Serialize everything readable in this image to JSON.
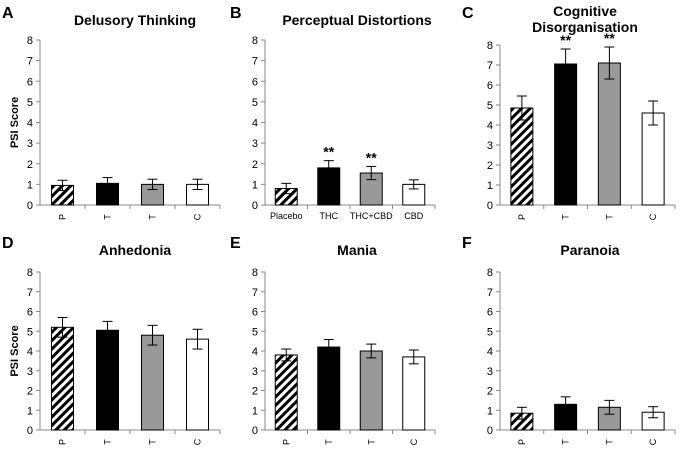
{
  "chart_data": [
    {
      "panel": "A",
      "type": "bar",
      "title_lines": [
        "Delusory Thinking"
      ],
      "ylabel": "PSI Score",
      "ylim": [
        0,
        8
      ],
      "yticks": [
        0,
        1,
        2,
        3,
        4,
        5,
        6,
        7,
        8
      ],
      "categories": [
        "P",
        "T",
        "T",
        "C"
      ],
      "values": [
        0.95,
        1.05,
        1.0,
        1.0
      ],
      "errors": [
        0.25,
        0.28,
        0.25,
        0.25
      ],
      "significance": [
        "",
        "",
        "",
        ""
      ]
    },
    {
      "panel": "B",
      "type": "bar",
      "title_lines": [
        "Perceptual Distortions"
      ],
      "ylabel": "",
      "ylim": [
        0,
        8
      ],
      "yticks": [
        0,
        1,
        2,
        3,
        4,
        5,
        6,
        7,
        8
      ],
      "categories": [
        "Placebo",
        "THC",
        "THC+CBD",
        "CBD"
      ],
      "values": [
        0.8,
        1.8,
        1.55,
        1.0
      ],
      "errors": [
        0.25,
        0.35,
        0.32,
        0.22
      ],
      "significance": [
        "",
        "**",
        "**",
        ""
      ]
    },
    {
      "panel": "C",
      "type": "bar",
      "title_lines": [
        "Cognitive",
        "Disorganisation"
      ],
      "ylabel": "",
      "ylim": [
        0,
        8
      ],
      "yticks": [
        0,
        1,
        2,
        3,
        4,
        5,
        6,
        7,
        8
      ],
      "categories": [
        "P",
        "T",
        "T",
        "C"
      ],
      "values": [
        4.85,
        7.05,
        7.1,
        4.6
      ],
      "errors": [
        0.6,
        0.75,
        0.8,
        0.6
      ],
      "significance": [
        "",
        "**",
        "**",
        ""
      ]
    },
    {
      "panel": "D",
      "type": "bar",
      "title_lines": [
        "Anhedonia"
      ],
      "ylabel": "PSI Score",
      "ylim": [
        0,
        8
      ],
      "yticks": [
        0,
        1,
        2,
        3,
        4,
        5,
        6,
        7,
        8
      ],
      "categories": [
        "P",
        "T",
        "T",
        "C"
      ],
      "values": [
        5.2,
        5.05,
        4.8,
        4.6
      ],
      "errors": [
        0.5,
        0.45,
        0.5,
        0.5
      ],
      "significance": [
        "",
        "",
        "",
        ""
      ]
    },
    {
      "panel": "E",
      "type": "bar",
      "title_lines": [
        "Mania"
      ],
      "ylabel": "",
      "ylim": [
        0,
        8
      ],
      "yticks": [
        0,
        1,
        2,
        3,
        4,
        5,
        6,
        7,
        8
      ],
      "categories": [
        "P",
        "T",
        "T",
        "C"
      ],
      "values": [
        3.8,
        4.2,
        4.0,
        3.7
      ],
      "errors": [
        0.3,
        0.38,
        0.35,
        0.35
      ],
      "significance": [
        "",
        "",
        "",
        ""
      ]
    },
    {
      "panel": "F",
      "type": "bar",
      "title_lines": [
        "Paranoia"
      ],
      "ylabel": "",
      "ylim": [
        0,
        8
      ],
      "yticks": [
        0,
        1,
        2,
        3,
        4,
        5,
        6,
        7,
        8
      ],
      "categories": [
        "P",
        "T",
        "T",
        "C"
      ],
      "values": [
        0.85,
        1.3,
        1.15,
        0.9
      ],
      "errors": [
        0.3,
        0.38,
        0.35,
        0.28
      ],
      "significance": [
        "",
        "",
        "",
        ""
      ]
    }
  ],
  "colors": {
    "thc": "#000000",
    "thc_cbd": "#999999",
    "cbd": "#ffffff",
    "placebo_hatch": "#000000",
    "axis": "#888888"
  }
}
